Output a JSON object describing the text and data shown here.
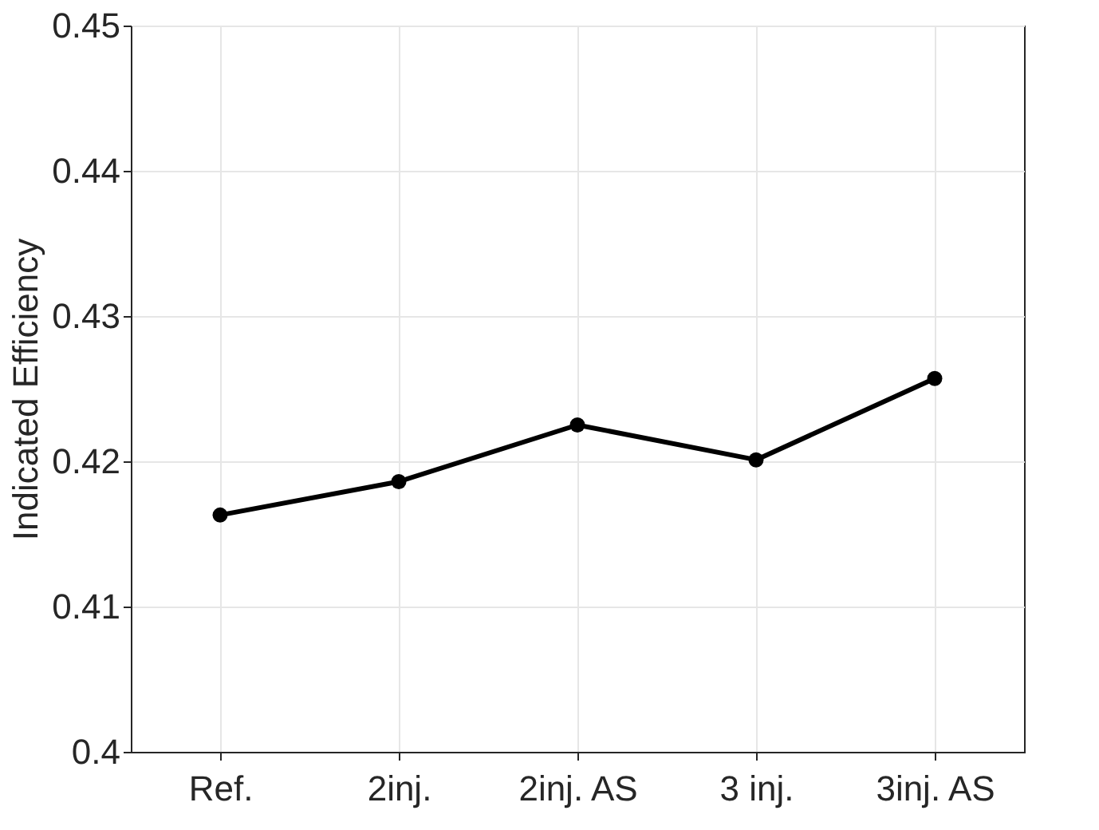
{
  "chart_data": {
    "type": "line",
    "ylabel": "Indicated Efficiency",
    "categories": [
      "Ref.",
      "2inj.",
      "2inj. AS",
      "3 inj.",
      "3inj. AS"
    ],
    "series": [
      {
        "color": "#000000",
        "values": [
          0.4163,
          0.4186,
          0.4225,
          0.4201,
          0.4257
        ]
      }
    ],
    "ylim": [
      0.4,
      0.45
    ],
    "yticks": [
      0.4,
      0.41,
      0.42,
      0.43,
      0.44,
      0.45
    ],
    "grid": true,
    "marker": "circle",
    "line_style": "solid"
  }
}
